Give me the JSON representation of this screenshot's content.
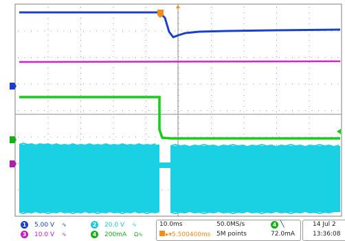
{
  "channels": [
    {
      "num": "1",
      "scale": "5.00 V",
      "color": "#1a3fcf"
    },
    {
      "num": "2",
      "scale": "20.0 V",
      "color": "#19c9d9"
    },
    {
      "num": "3",
      "scale": "10.0 V",
      "color": "#c11cc1"
    },
    {
      "num": "4",
      "scale": "200mA",
      "color": "#15b015",
      "suffix": "Ω"
    }
  ],
  "timebase": {
    "scale": "10.0ms",
    "position": "5.500400ms",
    "sample_rate": "50.0MS/s",
    "points": "5M points"
  },
  "trigger": {
    "channel": "4",
    "level": "72.0mA"
  },
  "datetime": {
    "date": "14 Jul 2",
    "time": "13:36:08"
  },
  "icons": {
    "bandwidth": "bandwidth-limit-icon",
    "trigger": "trigger-position-icon",
    "trigger_slope": "falling-edge-icon"
  }
}
